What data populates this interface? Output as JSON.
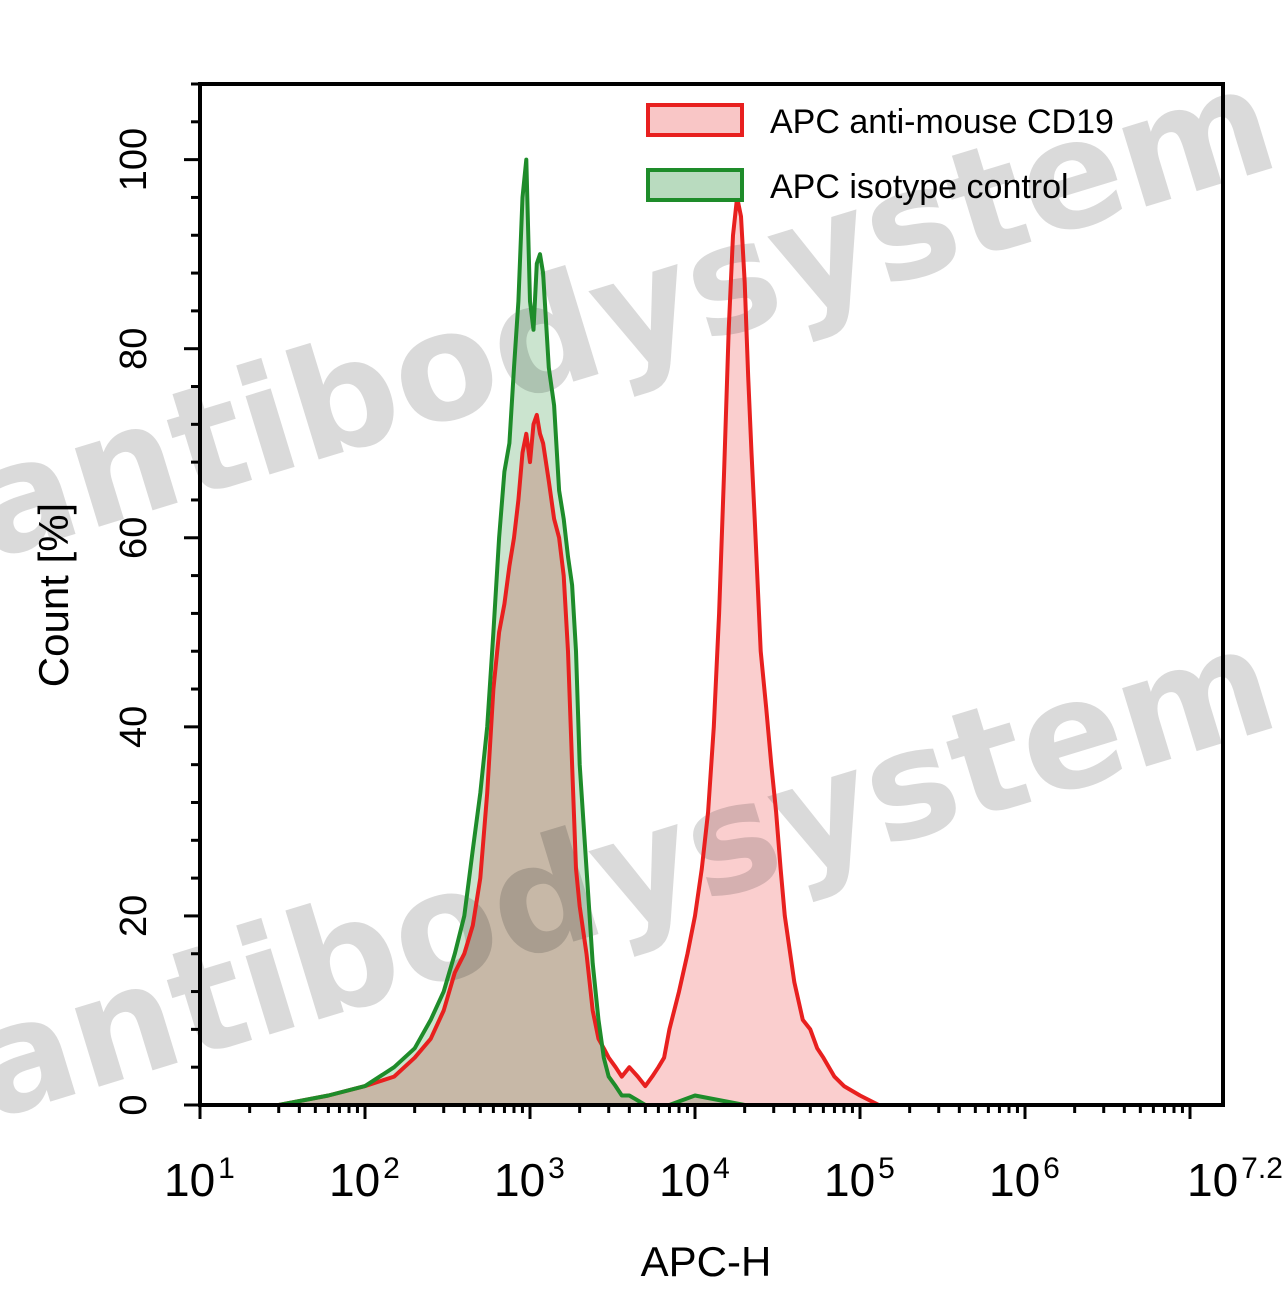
{
  "watermark": "antibodysystem.com",
  "chart_data": {
    "type": "area",
    "xlabel": "APC-H",
    "ylabel": "Count [%]",
    "x_scale": "log10",
    "xlim": [
      10,
      15848932
    ],
    "ylim": [
      0,
      108
    ],
    "x_ticks": [
      {
        "base": "10",
        "exp": "1"
      },
      {
        "base": "10",
        "exp": "2"
      },
      {
        "base": "10",
        "exp": "3"
      },
      {
        "base": "10",
        "exp": "4"
      },
      {
        "base": "10",
        "exp": "5"
      },
      {
        "base": "10",
        "exp": "6"
      },
      {
        "base": "10",
        "exp": "7.2"
      }
    ],
    "y_ticks": [
      "0",
      "20",
      "40",
      "60",
      "80",
      "100"
    ],
    "y_tick_values": [
      0,
      20,
      40,
      60,
      80,
      100
    ],
    "grid": false,
    "legend_position": "top-right",
    "series": [
      {
        "name": "APC anti-mouse CD19",
        "color": "#e8201f",
        "fill": "#f9c6c6",
        "x": [
          10,
          30,
          60,
          100,
          150,
          200,
          250,
          300,
          350,
          400,
          450,
          500,
          550,
          600,
          650,
          700,
          750,
          800,
          850,
          900,
          950,
          1000,
          1050,
          1100,
          1150,
          1200,
          1300,
          1400,
          1500,
          1600,
          1700,
          1800,
          1900,
          2000,
          2200,
          2400,
          2600,
          2800,
          3000,
          3300,
          3600,
          4000,
          4500,
          5000,
          5500,
          6000,
          6500,
          7000,
          8000,
          9000,
          10000,
          11000,
          12000,
          13000,
          14000,
          15000,
          16000,
          17000,
          18000,
          19000,
          20000,
          21000,
          22000,
          23000,
          24000,
          25000,
          27000,
          29000,
          31000,
          33000,
          35000,
          40000,
          45000,
          50000,
          55000,
          60000,
          70000,
          80000,
          100000,
          130000,
          200000,
          400000,
          1000000
        ],
        "y": [
          0,
          0,
          1,
          2,
          3,
          5,
          7,
          10,
          14,
          16,
          19,
          24,
          33,
          44,
          50,
          53,
          57,
          60,
          64,
          69,
          71,
          68,
          72,
          73,
          71,
          70,
          66,
          62,
          60,
          56,
          48,
          36,
          25,
          21,
          16,
          10,
          7,
          6,
          5,
          4,
          3,
          4,
          3,
          2,
          3,
          4,
          5,
          8,
          12,
          16,
          20,
          25,
          31,
          40,
          52,
          67,
          82,
          92,
          96,
          94,
          87,
          77,
          69,
          62,
          55,
          48,
          42,
          36,
          31,
          25,
          20,
          13,
          9,
          8,
          6,
          5,
          3,
          2,
          1,
          0,
          0,
          0,
          0
        ]
      },
      {
        "name": "APC isotype control",
        "color": "#1e8c2a",
        "fill": "#b9dbbf",
        "x": [
          10,
          30,
          60,
          100,
          150,
          200,
          250,
          300,
          350,
          400,
          450,
          500,
          550,
          600,
          650,
          700,
          750,
          800,
          850,
          900,
          950,
          1000,
          1050,
          1100,
          1150,
          1200,
          1300,
          1400,
          1500,
          1600,
          1700,
          1800,
          1900,
          2000,
          2200,
          2400,
          2600,
          2800,
          3000,
          3300,
          3600,
          4000,
          5000,
          7000,
          10000,
          20000,
          40000
        ],
        "y": [
          0,
          0,
          1,
          2,
          4,
          6,
          9,
          12,
          16,
          20,
          27,
          33,
          40,
          50,
          60,
          67,
          70,
          78,
          85,
          96,
          100,
          85,
          82,
          89,
          90,
          88,
          78,
          74,
          65,
          62,
          58,
          55,
          48,
          36,
          25,
          15,
          9,
          5,
          3,
          2,
          1,
          1,
          0,
          0,
          1,
          0,
          0
        ]
      }
    ]
  }
}
